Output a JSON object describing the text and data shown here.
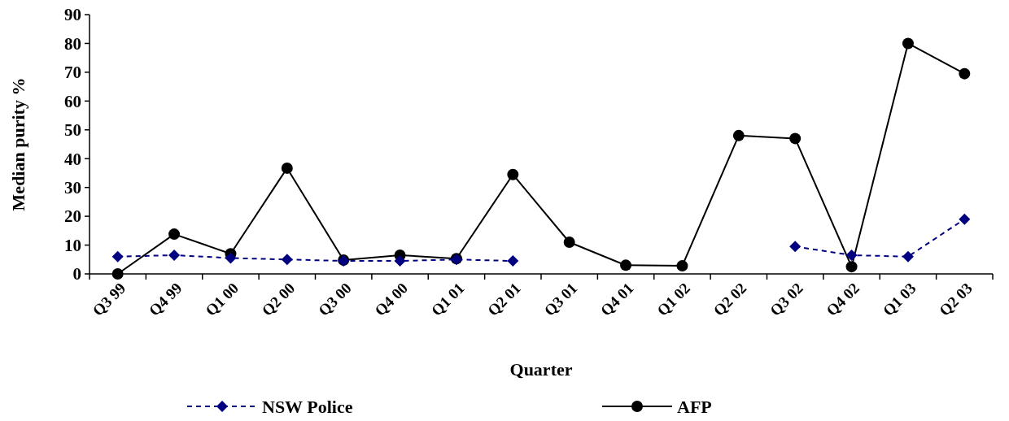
{
  "chart_data": {
    "type": "line",
    "xlabel": "Quarter",
    "ylabel": "Median purity %",
    "categories": [
      "Q3 99",
      "Q4 99",
      "Q1 00",
      "Q2 00",
      "Q3 00",
      "Q4 00",
      "Q1 01",
      "Q2 01",
      "Q3 01",
      "Q4 01",
      "Q1 02",
      "Q2 02",
      "Q3 02",
      "Q4 02",
      "Q1 03",
      "Q2 03"
    ],
    "series": [
      {
        "name": "NSW Police",
        "color": "#000080",
        "marker": "diamond",
        "line_style": "dashed",
        "values": [
          6,
          6.5,
          5.5,
          5,
          4.5,
          4.5,
          5,
          4.5,
          null,
          null,
          null,
          null,
          9.5,
          6.5,
          6,
          19
        ]
      },
      {
        "name": "AFP",
        "color": "#000000",
        "marker": "circle",
        "line_style": "solid",
        "values": [
          0,
          13.8,
          7,
          36.7,
          4.8,
          6.5,
          5.3,
          34.5,
          11,
          3,
          2.8,
          48,
          47,
          2.5,
          80,
          69.5
        ]
      }
    ],
    "ylim": [
      0,
      90
    ],
    "yticks": [
      0,
      10,
      20,
      30,
      40,
      50,
      60,
      70,
      80,
      90
    ],
    "grid": false,
    "legend": "bottom"
  }
}
